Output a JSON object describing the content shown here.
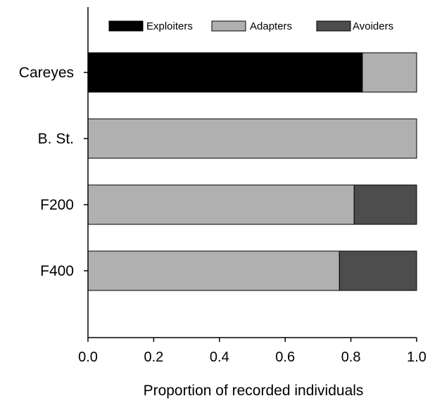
{
  "chart_data": {
    "type": "bar",
    "orientation": "horizontal",
    "stacked": true,
    "categories": [
      "Careyes",
      "B. St.",
      "F200",
      "F400"
    ],
    "series": [
      {
        "name": "Exploiters",
        "values": [
          0.835,
          0.0,
          0.0,
          0.0
        ],
        "color": "#000000"
      },
      {
        "name": "Adapters",
        "values": [
          0.165,
          1.0,
          0.81,
          0.765
        ],
        "color": "#b0b0b0"
      },
      {
        "name": "Avoiders",
        "values": [
          0.0,
          0.0,
          0.19,
          0.235
        ],
        "color": "#4d4d4d"
      }
    ],
    "xlabel": "Proportion of recorded individuals",
    "xlim": [
      0.0,
      1.0
    ],
    "xticks": [
      "0.0",
      "0.2",
      "0.4",
      "0.6",
      "0.8",
      "1.0"
    ],
    "grid": false,
    "legend": "top"
  }
}
